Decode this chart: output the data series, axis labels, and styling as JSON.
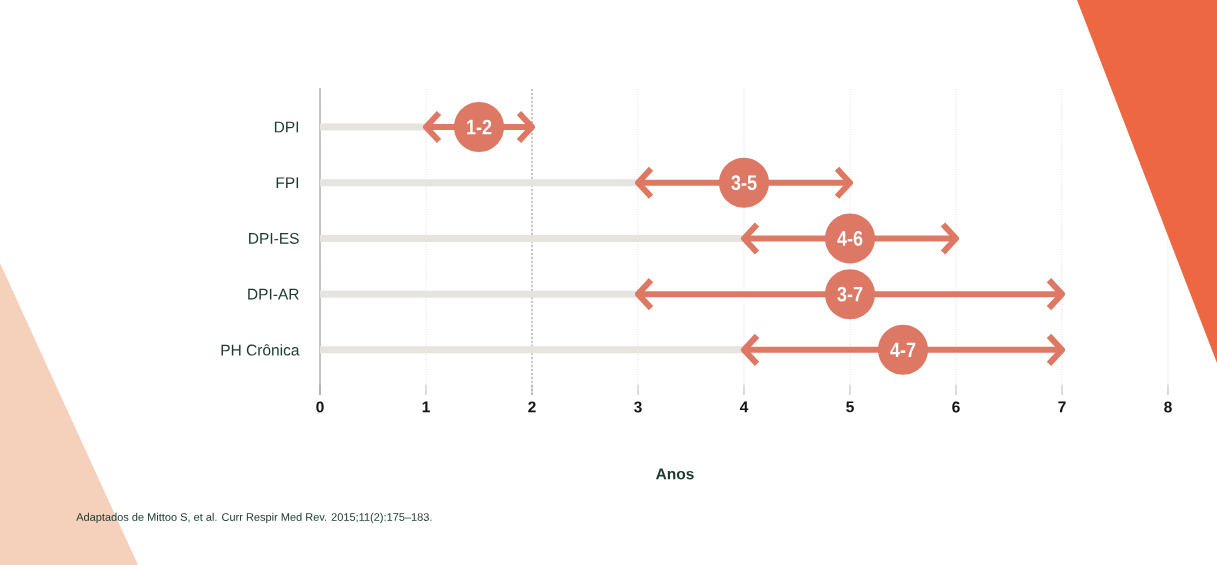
{
  "chart_data": {
    "type": "bar",
    "orientation": "horizontal",
    "stacked": true,
    "categories": [
      "DPI",
      "FPI",
      "DPI-ES",
      "DPI-AR",
      "PH Crônica"
    ],
    "series": [
      {
        "color": "#e6e4de",
        "values": [
          1,
          3,
          4,
          3,
          4
        ]
      },
      {
        "color": "#dc7863",
        "values": [
          1,
          2,
          2,
          4,
          3
        ],
        "value_labels": [
          "1-2",
          "3-5",
          "4-6",
          "3-7",
          "4-7"
        ]
      }
    ],
    "xlim": [
      0,
      8
    ],
    "xticks": [
      0,
      1,
      2,
      3,
      4,
      5,
      6,
      7,
      8
    ],
    "xlabel": "Anos",
    "grid": "x",
    "ref_lines": [
      {
        "axis": "x",
        "value": 2,
        "color": "#8c8c8c",
        "line_style": "dashed"
      }
    ],
    "annotations": [
      "Adaptados de Mittoo S, et al. Curr Respir Med Rev. 2015;11(2):175–183."
    ]
  }
}
